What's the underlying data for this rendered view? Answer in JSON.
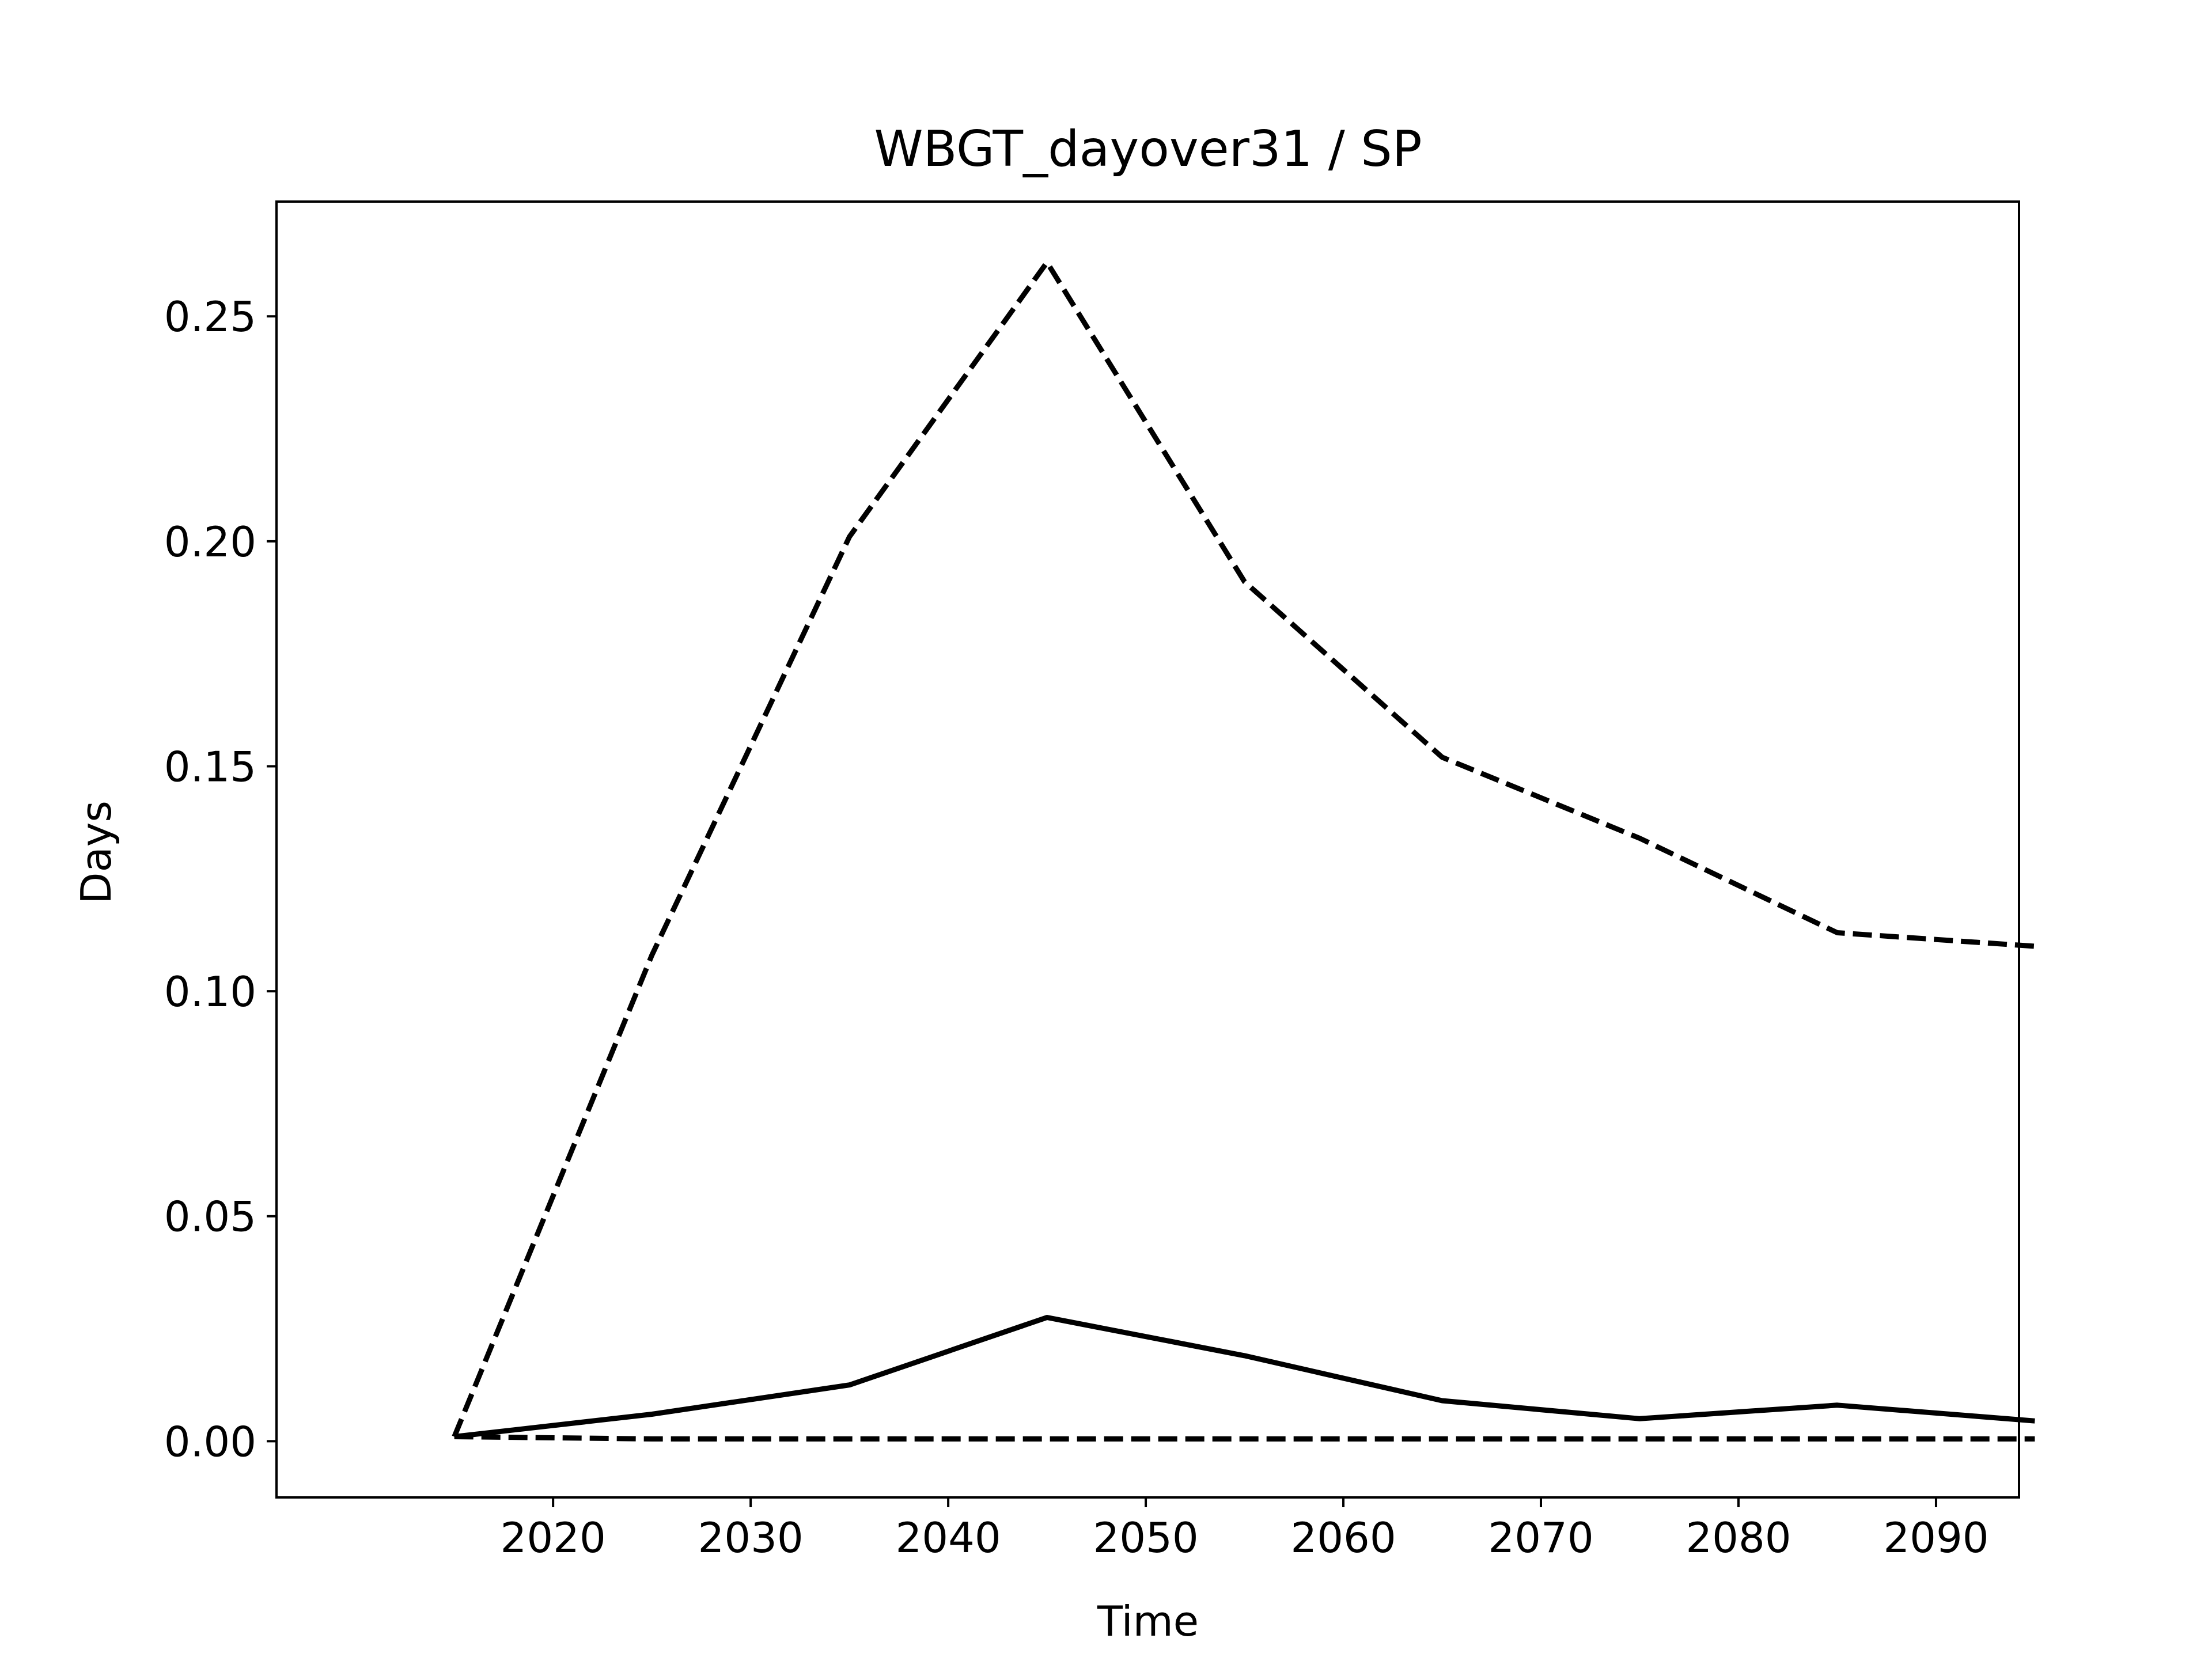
{
  "chart_data": {
    "type": "line",
    "title": "WBGT_dayover31 / SP",
    "xlabel": "Time",
    "ylabel": "Days",
    "x": [
      2015,
      2025,
      2035,
      2045,
      2055,
      2065,
      2075,
      2085,
      2095
    ],
    "xlim": [
      2006,
      2094.2
    ],
    "ylim": [
      -0.0125,
      0.2755
    ],
    "xticks": [
      2020,
      2030,
      2040,
      2050,
      2060,
      2070,
      2080,
      2090
    ],
    "yticks": [
      0.0,
      0.05,
      0.1,
      0.15,
      0.2,
      0.25
    ],
    "ytick_labels": [
      "0.00",
      "0.05",
      "0.10",
      "0.15",
      "0.20",
      "0.25"
    ],
    "grid": false,
    "legend": "none",
    "series": [
      {
        "style": "dashed",
        "color": "#000000",
        "values": [
          0.001,
          0.108,
          0.201,
          0.262,
          0.191,
          0.152,
          0.134,
          0.113,
          0.11
        ]
      },
      {
        "style": "solid",
        "color": "#000000",
        "values": [
          0.001,
          0.006,
          0.0125,
          0.0275,
          0.019,
          0.009,
          0.005,
          0.008,
          0.0045
        ]
      },
      {
        "style": "dashed",
        "color": "#000000",
        "values": [
          0.001,
          0.0005,
          0.0005,
          0.0005,
          0.0005,
          0.0005,
          0.0005,
          0.0005,
          0.0005
        ]
      }
    ]
  }
}
